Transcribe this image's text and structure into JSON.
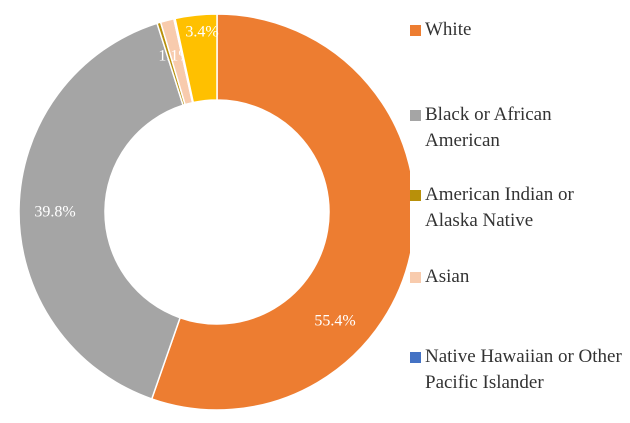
{
  "chart_data": {
    "type": "donut",
    "categories": [
      "White",
      "Black or African American",
      "American Indian or Alaska Native",
      "Asian",
      "Native Hawaiian or Other Pacific Islander",
      null
    ],
    "values": [
      55.4,
      39.8,
      0.3,
      1.1,
      0.1,
      3.4
    ],
    "value_labels": [
      "55.4%",
      "39.8%",
      null,
      "1.1%",
      null,
      "3.4%"
    ],
    "colors": [
      "#ed7d31",
      "#a5a5a5",
      "#b8900a",
      "#f8cbad",
      "#4472c4",
      "#ffc000"
    ]
  }
}
